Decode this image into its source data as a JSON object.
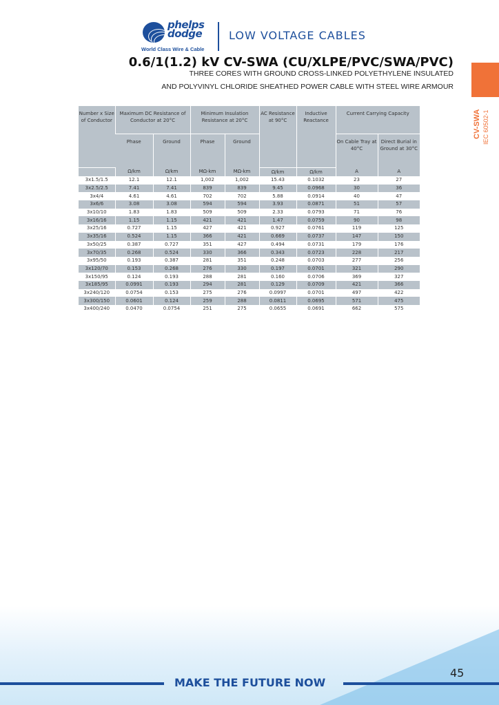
{
  "header": {
    "brand_line1": "phelps",
    "brand_line2": "dodge",
    "tagline": "World Class  Wire & Cable",
    "section": "LOW VOLTAGE CABLES",
    "title": "0.6/1(1.2) kV CV-SWA (CU/XLPE/PVC/SWA/PVC)",
    "subtitle_1": "THREE CORES WITH GROUND CROSS-LINKED POLYETHYLENE INSULATED",
    "subtitle_2": "AND POLYVINYL CHLORIDE SHEATHED POWER CABLE WITH STEEL WIRE ARMOUR"
  },
  "side_tab": {
    "code": "CV-SWA",
    "standard": "IEC 60502-1",
    "color": "#f07238"
  },
  "table": {
    "headers": {
      "size": "Number x Size of Conductor",
      "dc": "Maximum DC Resistance of Conductor at 20°C",
      "ins": "Minimum Insulation Resistance at 20°C",
      "ac": "AC Resistance at 90°C",
      "ind": "Inductive Reactance",
      "ccc": "Current Carrying Capacity",
      "phase": "Phase",
      "ground": "Ground",
      "tray": "On Cable Tray at 40°C",
      "burial": "Direct Burial in Ground at 30°C"
    },
    "units": [
      "Ω/km",
      "Ω/km",
      "MΩ-km",
      "MΩ-km",
      "Ω/km",
      "Ω/km",
      "A",
      "A"
    ],
    "rows": [
      [
        "3x1.5/1.5",
        "12.1",
        "12.1",
        "1,002",
        "1,002",
        "15.43",
        "0.1032",
        "23",
        "27"
      ],
      [
        "3x2.5/2.5",
        "7.41",
        "7.41",
        "839",
        "839",
        "9.45",
        "0.0968",
        "30",
        "36"
      ],
      [
        "3x4/4",
        "4.61",
        "4.61",
        "702",
        "702",
        "5.88",
        "0.0914",
        "40",
        "47"
      ],
      [
        "3x6/6",
        "3.08",
        "3.08",
        "594",
        "594",
        "3.93",
        "0.0871",
        "51",
        "57"
      ],
      [
        "3x10/10",
        "1.83",
        "1.83",
        "509",
        "509",
        "2.33",
        "0.0793",
        "71",
        "76"
      ],
      [
        "3x16/16",
        "1.15",
        "1.15",
        "421",
        "421",
        "1.47",
        "0.0759",
        "90",
        "98"
      ],
      [
        "3x25/16",
        "0.727",
        "1.15",
        "427",
        "421",
        "0.927",
        "0.0761",
        "119",
        "125"
      ],
      [
        "3x35/16",
        "0.524",
        "1.15",
        "366",
        "421",
        "0.669",
        "0.0737",
        "147",
        "150"
      ],
      [
        "3x50/25",
        "0.387",
        "0.727",
        "351",
        "427",
        "0.494",
        "0.0731",
        "179",
        "176"
      ],
      [
        "3x70/35",
        "0.268",
        "0.524",
        "330",
        "366",
        "0.343",
        "0.0723",
        "228",
        "217"
      ],
      [
        "3x95/50",
        "0.193",
        "0.387",
        "281",
        "351",
        "0.248",
        "0.0703",
        "277",
        "256"
      ],
      [
        "3x120/70",
        "0.153",
        "0.268",
        "276",
        "330",
        "0.197",
        "0.0701",
        "321",
        "290"
      ],
      [
        "3x150/95",
        "0.124",
        "0.193",
        "288",
        "281",
        "0.160",
        "0.0706",
        "369",
        "327"
      ],
      [
        "3x185/95",
        "0.0991",
        "0.193",
        "294",
        "281",
        "0.129",
        "0.0709",
        "421",
        "366"
      ],
      [
        "3x240/120",
        "0.0754",
        "0.153",
        "275",
        "276",
        "0.0997",
        "0.0701",
        "497",
        "422"
      ],
      [
        "3x300/150",
        "0.0601",
        "0.124",
        "259",
        "288",
        "0.0811",
        "0.0695",
        "571",
        "475"
      ],
      [
        "3x400/240",
        "0.0470",
        "0.0754",
        "251",
        "275",
        "0.0655",
        "0.0691",
        "662",
        "575"
      ]
    ]
  },
  "footer": {
    "motto": "MAKE THE FUTURE NOW",
    "page": "45"
  }
}
